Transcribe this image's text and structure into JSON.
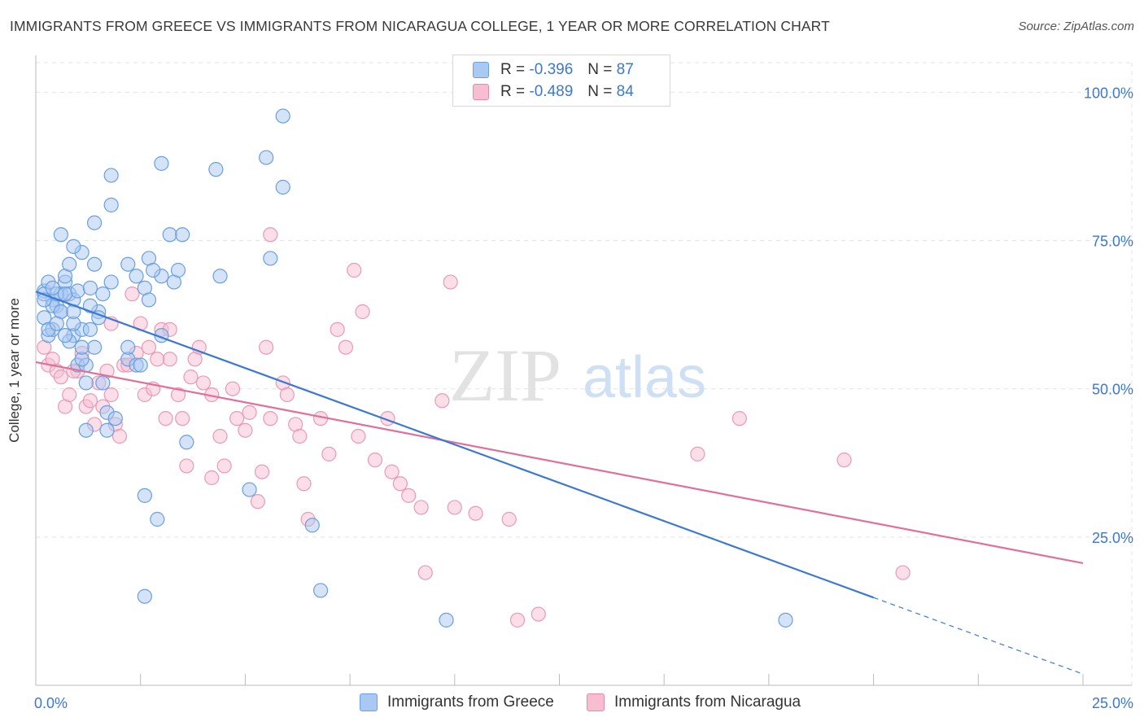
{
  "title": "IMMIGRANTS FROM GREECE VS IMMIGRANTS FROM NICARAGUA COLLEGE, 1 YEAR OR MORE CORRELATION CHART",
  "source": "Source: ZipAtlas.com",
  "watermark": {
    "zip": "ZIP",
    "atlas": "atlas"
  },
  "legend": {
    "rows": [
      {
        "r_label": "R =",
        "r_value": "-0.396",
        "n_label": "N =",
        "n_value": "87",
        "color": "#a9c8f2",
        "border": "#6a9fe0"
      },
      {
        "r_label": "R =",
        "r_value": "-0.489",
        "n_label": "N =",
        "n_value": "84",
        "color": "#f7bdd0",
        "border": "#e889a9"
      }
    ]
  },
  "bottom_legend": [
    {
      "label": "Immigrants from Greece",
      "color": "#a9c8f2",
      "border": "#6a9fe0"
    },
    {
      "label": "Immigrants from Nicaragua",
      "color": "#f7bdd0",
      "border": "#e889a9"
    }
  ],
  "chart_data": {
    "type": "scatter",
    "xlabel": "",
    "ylabel": "College, 1 year or more",
    "xlim": [
      0,
      25
    ],
    "ylim": [
      0,
      105
    ],
    "x_tick_labels": [
      "0.0%",
      "25.0%"
    ],
    "y_ticks": [
      25,
      50,
      75,
      100
    ],
    "y_tick_labels": [
      "25.0%",
      "50.0%",
      "75.0%",
      "100.0%"
    ],
    "grid": true,
    "colors": {
      "greece": "#3b78d1",
      "nicaragua": "#e0709a",
      "greece_fill": "#a9c8f2",
      "nicaragua_fill": "#f7bdd0",
      "axis_text": "#3b78d1"
    },
    "series": [
      {
        "name": "Immigrants from Greece",
        "trend": {
          "x": [
            0,
            20
          ],
          "y": [
            66.4,
            14.8
          ],
          "dashed_to": [
            25,
            1.9
          ]
        },
        "points": [
          [
            0.2,
            66.5
          ],
          [
            0.3,
            68
          ],
          [
            0.4,
            65
          ],
          [
            0.2,
            62
          ],
          [
            0.5,
            64
          ],
          [
            0.6,
            66
          ],
          [
            0.3,
            59
          ],
          [
            0.4,
            60
          ],
          [
            0.7,
            68
          ],
          [
            0.8,
            66
          ],
          [
            0.9,
            65
          ],
          [
            1.0,
            66.5
          ],
          [
            0.6,
            63
          ],
          [
            0.7,
            69
          ],
          [
            0.8,
            71
          ],
          [
            1.1,
            73
          ],
          [
            1.4,
            71
          ],
          [
            1.3,
            67
          ],
          [
            1.6,
            66
          ],
          [
            1.5,
            63
          ],
          [
            0.9,
            59
          ],
          [
            1.1,
            60
          ],
          [
            1.5,
            62
          ],
          [
            1.8,
            68
          ],
          [
            2.2,
            71
          ],
          [
            2.4,
            69
          ],
          [
            2.7,
            72
          ],
          [
            2.6,
            67
          ],
          [
            2.7,
            65
          ],
          [
            3.0,
            69
          ],
          [
            3.3,
            68
          ],
          [
            0.6,
            76
          ],
          [
            0.9,
            74
          ],
          [
            1.4,
            78
          ],
          [
            1.8,
            81
          ],
          [
            1.8,
            86
          ],
          [
            3.0,
            88
          ],
          [
            4.3,
            87
          ],
          [
            5.5,
            89
          ],
          [
            5.9,
            96
          ],
          [
            5.9,
            84
          ],
          [
            3.2,
            76
          ],
          [
            3.5,
            76
          ],
          [
            4.4,
            69
          ],
          [
            5.6,
            72
          ],
          [
            1.0,
            54
          ],
          [
            1.2,
            54
          ],
          [
            1.2,
            51
          ],
          [
            1.4,
            57
          ],
          [
            0.8,
            58
          ],
          [
            1.1,
            55
          ],
          [
            2.2,
            55
          ],
          [
            2.4,
            54
          ],
          [
            3.0,
            59
          ],
          [
            2.2,
            57
          ],
          [
            1.6,
            51
          ],
          [
            1.2,
            43
          ],
          [
            1.7,
            46
          ],
          [
            1.7,
            43
          ],
          [
            1.9,
            45
          ],
          [
            2.6,
            32
          ],
          [
            2.9,
            28
          ],
          [
            3.6,
            41
          ],
          [
            5.1,
            33
          ],
          [
            6.6,
            27
          ],
          [
            2.6,
            15
          ],
          [
            6.8,
            16
          ],
          [
            9.8,
            11
          ],
          [
            17.9,
            11
          ],
          [
            0.2,
            66
          ],
          [
            0.4,
            64
          ],
          [
            0.5,
            66
          ],
          [
            0.3,
            60
          ],
          [
            0.6,
            63
          ],
          [
            0.9,
            61
          ],
          [
            1.1,
            57
          ],
          [
            1.3,
            64
          ],
          [
            0.7,
            66
          ],
          [
            0.4,
            67
          ],
          [
            0.2,
            65
          ],
          [
            2.8,
            70
          ],
          [
            0.9,
            63
          ],
          [
            1.3,
            60
          ],
          [
            2.5,
            54
          ],
          [
            0.5,
            61
          ],
          [
            0.7,
            59
          ],
          [
            3.4,
            70
          ]
        ]
      },
      {
        "name": "Immigrants from Nicaragua",
        "trend": {
          "x": [
            0,
            25
          ],
          "y": [
            54.5,
            20.6
          ]
        },
        "points": [
          [
            0.2,
            57
          ],
          [
            0.3,
            54
          ],
          [
            0.4,
            55
          ],
          [
            0.5,
            53
          ],
          [
            0.6,
            52
          ],
          [
            0.7,
            47
          ],
          [
            0.8,
            49
          ],
          [
            1.0,
            53
          ],
          [
            1.1,
            56
          ],
          [
            1.2,
            47
          ],
          [
            1.3,
            48
          ],
          [
            1.4,
            44
          ],
          [
            1.5,
            51
          ],
          [
            1.7,
            53
          ],
          [
            1.8,
            61
          ],
          [
            1.9,
            44
          ],
          [
            2.1,
            54
          ],
          [
            2.2,
            54
          ],
          [
            2.3,
            66
          ],
          [
            2.5,
            61
          ],
          [
            2.6,
            49
          ],
          [
            2.7,
            57
          ],
          [
            2.8,
            50
          ],
          [
            3.0,
            60
          ],
          [
            3.1,
            45
          ],
          [
            3.2,
            55
          ],
          [
            3.4,
            49
          ],
          [
            3.5,
            45
          ],
          [
            3.7,
            52
          ],
          [
            3.8,
            55
          ],
          [
            4.0,
            51
          ],
          [
            4.2,
            49
          ],
          [
            4.4,
            42
          ],
          [
            4.5,
            37
          ],
          [
            4.7,
            50
          ],
          [
            4.8,
            45
          ],
          [
            5.0,
            43
          ],
          [
            5.1,
            46
          ],
          [
            5.3,
            31
          ],
          [
            5.5,
            57
          ],
          [
            5.6,
            45
          ],
          [
            5.9,
            51
          ],
          [
            6.0,
            49
          ],
          [
            6.2,
            44
          ],
          [
            6.3,
            42
          ],
          [
            6.5,
            28
          ],
          [
            6.8,
            45
          ],
          [
            7.0,
            39
          ],
          [
            7.2,
            60
          ],
          [
            7.4,
            57
          ],
          [
            7.6,
            70
          ],
          [
            7.8,
            63
          ],
          [
            8.1,
            38
          ],
          [
            8.5,
            36
          ],
          [
            8.7,
            34
          ],
          [
            8.9,
            32
          ],
          [
            9.2,
            30
          ],
          [
            9.7,
            48
          ],
          [
            9.9,
            68
          ],
          [
            10.0,
            30
          ],
          [
            10.5,
            29
          ],
          [
            11.3,
            28
          ],
          [
            11.5,
            11
          ],
          [
            12.0,
            12
          ],
          [
            15.8,
            39
          ],
          [
            16.8,
            45
          ],
          [
            19.3,
            38
          ],
          [
            20.7,
            19
          ],
          [
            5.6,
            76
          ],
          [
            3.2,
            60
          ],
          [
            2.4,
            56
          ],
          [
            1.6,
            47
          ],
          [
            0.9,
            53
          ],
          [
            2.0,
            42
          ],
          [
            3.6,
            37
          ],
          [
            4.2,
            35
          ],
          [
            5.4,
            36
          ],
          [
            6.4,
            34
          ],
          [
            7.7,
            42
          ],
          [
            8.4,
            45
          ],
          [
            9.3,
            19
          ],
          [
            1.8,
            49
          ],
          [
            2.9,
            55
          ],
          [
            3.9,
            57
          ]
        ]
      }
    ]
  }
}
